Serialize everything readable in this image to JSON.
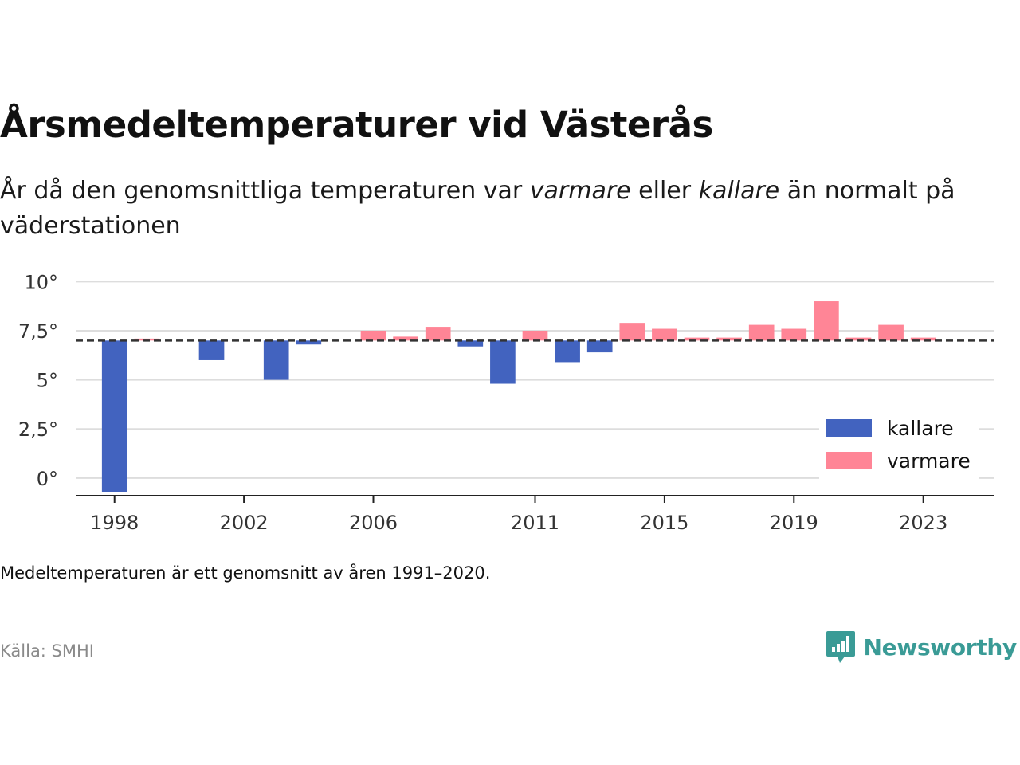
{
  "title": "Årsmedeltemperaturer vid Västerås",
  "subtitle": {
    "part1": "År då den genomsnittliga temperaturen var ",
    "warm_word": "varmare",
    "part2": " eller ",
    "cold_word": "kallare",
    "part3": " än normalt på väderstationen"
  },
  "note": "Medeltemperaturen är ett genomsnitt av åren 1991–2020.",
  "source": "Källa: SMHI",
  "brand": {
    "name": "Newsworthy",
    "icon": "newsworthy-logo-icon"
  },
  "colors": {
    "kallare": "#4263bf",
    "varmare": "#ff8596",
    "reference": "#333333",
    "grid": "#dddddd",
    "axis": "#222222"
  },
  "chart_data": {
    "type": "bar",
    "xlim": [
      1996.8,
      2025.2
    ],
    "ylim": [
      -0.9,
      10.3
    ],
    "baseline": 7.0,
    "x_ticks": [
      1998,
      2002,
      2006,
      2011,
      2015,
      2019,
      2023
    ],
    "y_ticks": [
      0,
      2.5,
      5,
      7.5,
      10
    ],
    "y_tick_labels": [
      "0°",
      "2,5°",
      "5°",
      "7,5°",
      "10°"
    ],
    "legend": {
      "placement": "right",
      "items": [
        {
          "key": "kallare",
          "label": "kallare"
        },
        {
          "key": "varmare",
          "label": "varmare"
        }
      ]
    },
    "values": [
      {
        "year": 1998,
        "value": -0.7
      },
      {
        "year": 1999,
        "value": 7.1
      },
      {
        "year": 2001,
        "value": 6.0
      },
      {
        "year": 2003,
        "value": 5.0
      },
      {
        "year": 2004,
        "value": 6.8
      },
      {
        "year": 2006,
        "value": 7.5
      },
      {
        "year": 2007,
        "value": 7.2
      },
      {
        "year": 2008,
        "value": 7.7
      },
      {
        "year": 2009,
        "value": 6.7
      },
      {
        "year": 2010,
        "value": 4.8
      },
      {
        "year": 2011,
        "value": 7.5
      },
      {
        "year": 2012,
        "value": 5.9
      },
      {
        "year": 2013,
        "value": 6.4
      },
      {
        "year": 2014,
        "value": 7.9
      },
      {
        "year": 2015,
        "value": 7.6
      },
      {
        "year": 2016,
        "value": 7.15
      },
      {
        "year": 2017,
        "value": 7.15
      },
      {
        "year": 2018,
        "value": 7.8
      },
      {
        "year": 2019,
        "value": 7.6
      },
      {
        "year": 2020,
        "value": 9.0
      },
      {
        "year": 2021,
        "value": 7.15
      },
      {
        "year": 2022,
        "value": 7.8
      },
      {
        "year": 2023,
        "value": 7.15
      }
    ]
  }
}
